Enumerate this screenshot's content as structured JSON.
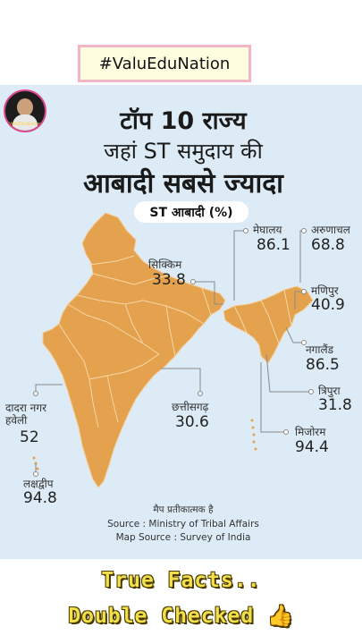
{
  "hashtag": "#ValuEduNation",
  "logo": {
    "text": "ValuEduNation"
  },
  "title": {
    "line1": "टॉप 10 राज्य",
    "line2": "जहां ST समुदाय की",
    "line3": "आबादी सबसे ज्यादा"
  },
  "legend_pill": "ST आबादी (%)",
  "map_fill_color": "#e4a24e",
  "states": [
    {
      "name": "सिक्किम",
      "value": "33.8"
    },
    {
      "name": "मेघालय",
      "value": "86.1"
    },
    {
      "name": "अरुणाचल",
      "value": "68.8"
    },
    {
      "name": "मणिपुर",
      "value": "40.9"
    },
    {
      "name": "नगालैंड",
      "value": "86.5"
    },
    {
      "name": "त्रिपुरा",
      "value": "31.8"
    },
    {
      "name": "मिजोरम",
      "value": "94.4"
    },
    {
      "name": "छत्तीसगढ़",
      "value": "30.6"
    },
    {
      "name": "दादरा नगर हवेली",
      "value": "52"
    },
    {
      "name": "लक्षद्वीप",
      "value": "94.8"
    }
  ],
  "notes": {
    "symbolic": "मैप प्रतीकात्मक है",
    "source": "Source : Ministry of Tribal Affairs",
    "map_source": "Map Source : Survey of India"
  },
  "footer": {
    "line1": "True Facts..",
    "line2": "Double Checked 👍"
  }
}
